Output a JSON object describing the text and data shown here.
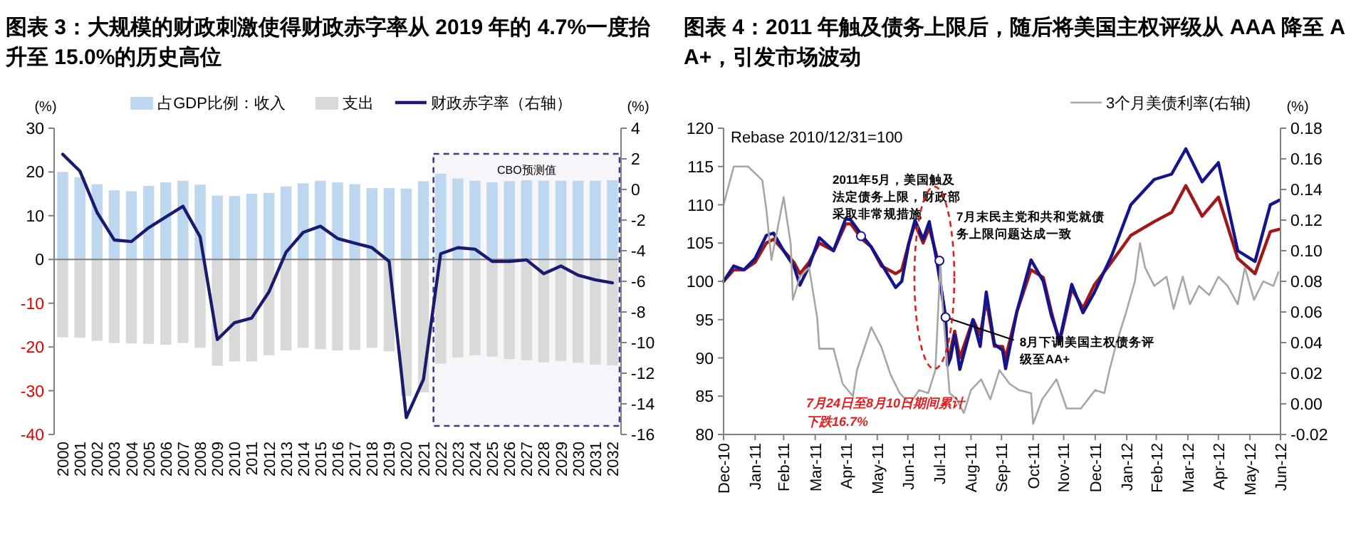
{
  "chart_data": [
    {
      "type": "bar",
      "title": "图表 3：大规模的财政刺激使得财政赤字率从 2019 年的 4.7%一度抬升至 15.0%的历史高位",
      "ylabel": "(%)",
      "y2label": "(%)",
      "legend": "top",
      "stacked": true,
      "categories": [
        "2000",
        "2001",
        "2002",
        "2003",
        "2004",
        "2005",
        "2006",
        "2007",
        "2008",
        "2009",
        "2010",
        "2011",
        "2012",
        "2013",
        "2014",
        "2015",
        "2016",
        "2017",
        "2018",
        "2019",
        "2020",
        "2021",
        "2022",
        "2023",
        "2024",
        "2025",
        "2026",
        "2027",
        "2028",
        "2029",
        "2030",
        "2031",
        "2032"
      ],
      "series": [
        {
          "name": "占GDP比例：收入",
          "color": "#bdd7ee",
          "values": [
            20,
            18.8,
            17.2,
            15.8,
            15.6,
            16.8,
            17.6,
            18,
            17.1,
            14.6,
            14.5,
            15,
            15.2,
            16.7,
            17.4,
            18,
            17.6,
            17.2,
            16.3,
            16.3,
            16.2,
            17.9,
            19.6,
            18.5,
            18,
            17.6,
            17.9,
            18.1,
            18,
            18,
            18,
            18,
            18.1
          ]
        },
        {
          "name": "支出",
          "color": "#d9d9d9",
          "values": [
            -17.8,
            -17.9,
            -18.6,
            -19.1,
            -19.2,
            -19.3,
            -19.5,
            -19.1,
            -20.2,
            -24.3,
            -23.3,
            -23.3,
            -21.9,
            -20.8,
            -20.2,
            -20.5,
            -20.8,
            -20.7,
            -20.2,
            -21,
            -31.2,
            -30.4,
            -23.8,
            -22.4,
            -21.9,
            -22.2,
            -22.8,
            -23,
            -23.5,
            -23.2,
            -23.6,
            -24,
            -24.2
          ]
        },
        {
          "name": "财政赤字率（右轴）",
          "type": "line",
          "axis": "y2",
          "color": "#1a1a6e",
          "values": [
            2.3,
            1.2,
            -1.5,
            -3.3,
            -3.4,
            -2.5,
            -1.8,
            -1.1,
            -3.1,
            -9.8,
            -8.7,
            -8.4,
            -6.7,
            -4.1,
            -2.8,
            -2.4,
            -3.2,
            -3.5,
            -3.8,
            -4.7,
            -14.9,
            -12.4,
            -4.2,
            -3.8,
            -3.9,
            -4.7,
            -4.7,
            -4.6,
            -5.5,
            -5.0,
            -5.6,
            -5.9,
            -6.1
          ]
        }
      ],
      "ylim": [
        -40,
        30
      ],
      "yticks": [
        -40,
        -30,
        -20,
        -10,
        0,
        10,
        20,
        30
      ],
      "y2lim": [
        -16,
        4
      ],
      "y2ticks": [
        -16,
        -14,
        -12,
        -10,
        -8,
        -6,
        -4,
        -2,
        0,
        2,
        4
      ],
      "bands": [
        {
          "axis": "x",
          "from": "2022",
          "to": "2032",
          "label": "CBO预测值",
          "color": "#3a3a9a"
        }
      ]
    },
    {
      "type": "line",
      "title": "图表 4：2011 年触及债务上限后，随后将美国主权评级从 AAA 降至 AA+，引发市场波动",
      "y2label": "(%)",
      "legend": "top",
      "series": [
        {
          "color": "#a01818",
          "x": [
            "2010-12-31",
            "2011-01-10",
            "2011-01-20",
            "2011-01-31",
            "2011-02-11",
            "2011-02-18",
            "2011-02-28",
            "2011-03-10",
            "2011-03-16",
            "2011-03-25",
            "2011-04-04",
            "2011-04-18",
            "2011-04-30",
            "2011-05-05",
            "2011-05-16",
            "2011-05-25",
            "2011-06-04",
            "2011-06-18",
            "2011-06-24",
            "2011-07-01",
            "2011-07-07",
            "2011-07-15",
            "2011-07-21",
            "2011-07-28",
            "2011-08-06",
            "2011-08-08",
            "2011-08-11",
            "2011-08-15",
            "2011-08-20",
            "2011-09-02",
            "2011-09-09",
            "2011-09-15",
            "2011-09-23",
            "2011-10-01",
            "2011-10-04",
            "2011-10-15",
            "2011-10-29",
            "2011-11-10",
            "2011-11-18",
            "2011-11-26",
            "2011-12-08",
            "2011-12-19",
            "2011-12-30",
            "2012-01-16",
            "2012-02-04",
            "2012-02-27",
            "2012-03-15",
            "2012-03-29",
            "2012-04-14",
            "2012-04-30",
            "2012-05-19",
            "2012-06-05",
            "2012-06-20",
            "2012-06-29"
          ],
          "values": [
            100,
            101.5,
            101.5,
            102.5,
            105,
            105.5,
            104,
            102.5,
            101,
            102.5,
            105,
            104,
            107.5,
            107.5,
            105.5,
            104.5,
            102,
            101,
            101.5,
            105,
            107.5,
            105,
            107,
            103.5,
            95,
            89.5,
            91,
            93.5,
            90,
            95,
            93,
            97.5,
            91.5,
            91.5,
            90,
            96,
            101.5,
            100.5,
            96,
            92,
            99,
            96.5,
            99.5,
            102.5,
            106,
            107.8,
            109,
            112.5,
            108.5,
            111,
            103,
            101,
            106.5,
            106.8
          ]
        },
        {
          "color": "#14148c",
          "x": [
            "2010-12-31",
            "2011-01-10",
            "2011-01-20",
            "2011-01-31",
            "2011-02-11",
            "2011-02-18",
            "2011-02-28",
            "2011-03-10",
            "2011-03-16",
            "2011-03-25",
            "2011-04-04",
            "2011-04-18",
            "2011-04-30",
            "2011-05-05",
            "2011-05-16",
            "2011-05-25",
            "2011-06-04",
            "2011-06-18",
            "2011-06-24",
            "2011-07-01",
            "2011-07-07",
            "2011-07-15",
            "2011-07-21",
            "2011-07-28",
            "2011-08-06",
            "2011-08-08",
            "2011-08-11",
            "2011-08-15",
            "2011-08-20",
            "2011-09-02",
            "2011-09-09",
            "2011-09-15",
            "2011-09-23",
            "2011-10-01",
            "2011-10-04",
            "2011-10-15",
            "2011-10-29",
            "2011-11-10",
            "2011-11-18",
            "2011-11-26",
            "2011-12-08",
            "2011-12-19",
            "2011-12-30",
            "2012-01-16",
            "2012-02-04",
            "2012-02-27",
            "2012-03-15",
            "2012-03-29",
            "2012-04-14",
            "2012-04-30",
            "2012-05-19",
            "2012-06-05",
            "2012-06-20",
            "2012-06-29"
          ],
          "values": [
            100,
            102,
            101.5,
            103,
            106,
            106.3,
            104,
            102,
            99.5,
            102,
            105.7,
            104,
            108.2,
            108,
            106,
            104.5,
            102.3,
            99.2,
            100,
            105,
            108,
            105.5,
            107.8,
            103,
            95.5,
            89,
            90,
            93,
            88.5,
            95,
            91.5,
            98.6,
            91.8,
            91,
            88.6,
            96,
            102.8,
            100,
            95.5,
            92.3,
            99.6,
            95.9,
            98.5,
            103.3,
            110,
            113.3,
            114,
            117.3,
            113,
            115.5,
            104,
            102.6,
            110,
            110.6
          ]
        },
        {
          "name": "3个月美债利率(右轴)",
          "color": "#a6a6a6",
          "axis": "y2",
          "x": [
            "2010-12-31",
            "2011-01-10",
            "2011-01-24",
            "2011-02-07",
            "2011-02-11",
            "2011-02-16",
            "2011-02-28",
            "2011-03-07",
            "2011-03-09",
            "2011-03-16",
            "2011-03-25",
            "2011-04-02",
            "2011-04-04",
            "2011-04-18",
            "2011-04-27",
            "2011-05-07",
            "2011-05-11",
            "2011-05-25",
            "2011-06-04",
            "2011-06-13",
            "2011-06-22",
            "2011-07-02",
            "2011-07-11",
            "2011-07-20",
            "2011-07-27",
            "2011-08-01",
            "2011-08-03",
            "2011-08-10",
            "2011-08-17",
            "2011-08-24",
            "2011-08-31",
            "2011-09-10",
            "2011-09-19",
            "2011-09-28",
            "2011-10-08",
            "2011-10-17",
            "2011-10-29",
            "2011-10-31",
            "2011-11-09",
            "2011-11-23",
            "2011-12-03",
            "2011-12-17",
            "2011-12-31",
            "2012-01-09",
            "2012-01-14",
            "2012-01-21",
            "2012-01-30",
            "2012-02-08",
            "2012-02-13",
            "2012-02-18",
            "2012-02-27",
            "2012-03-10",
            "2012-03-17",
            "2012-03-26",
            "2012-04-02",
            "2012-04-11",
            "2012-04-21",
            "2012-04-30",
            "2012-05-09",
            "2012-05-19",
            "2012-05-26",
            "2012-06-04",
            "2012-06-13",
            "2012-06-23",
            "2012-06-28"
          ],
          "values": [
            0.13,
            0.155,
            0.155,
            0.146,
            0.127,
            0.094,
            0.135,
            0.104,
            0.068,
            0.083,
            0.089,
            0.056,
            0.036,
            0.036,
            0.013,
            0.005,
            0.022,
            0.05,
            0.037,
            0.019,
            0.007,
            0.0,
            0.009,
            0.007,
            0.022,
            0.093,
            0.065,
            0.007,
            0.003,
            -0.006,
            0.009,
            0.016,
            0.003,
            0.022,
            0.013,
            0.009,
            0.007,
            -0.013,
            0.003,
            0.016,
            -0.003,
            -0.003,
            0.009,
            0.007,
            0.022,
            0.04,
            0.059,
            0.08,
            0.105,
            0.089,
            0.077,
            0.083,
            0.062,
            0.083,
            0.065,
            0.077,
            0.071,
            0.083,
            0.077,
            0.065,
            0.089,
            0.068,
            0.08,
            0.077,
            0.086
          ]
        }
      ],
      "xlim": [
        "2010-12-31",
        "2012-06-30"
      ],
      "xticks": [
        {
          "value": "2010-12-31",
          "label": "Dec-10"
        },
        {
          "value": "2011-01-31",
          "label": "Jan-11"
        },
        {
          "value": "2011-02-28",
          "label": "Feb-11"
        },
        {
          "value": "2011-03-31",
          "label": "Mar-11"
        },
        {
          "value": "2011-04-30",
          "label": "Apr-11"
        },
        {
          "value": "2011-05-31",
          "label": "May-11"
        },
        {
          "value": "2011-06-30",
          "label": "Jun-11"
        },
        {
          "value": "2011-07-31",
          "label": "Jul-11"
        },
        {
          "value": "2011-08-31",
          "label": "Aug-11"
        },
        {
          "value": "2011-09-30",
          "label": "Sep-11"
        },
        {
          "value": "2011-10-31",
          "label": "Oct-11"
        },
        {
          "value": "2011-11-30",
          "label": "Nov-11"
        },
        {
          "value": "2011-12-31",
          "label": "Dec-11"
        },
        {
          "value": "2012-01-31",
          "label": "Jan-12"
        },
        {
          "value": "2012-02-29",
          "label": "Feb-12"
        },
        {
          "value": "2012-03-31",
          "label": "Mar-12"
        },
        {
          "value": "2012-04-30",
          "label": "Apr-12"
        },
        {
          "value": "2012-05-31",
          "label": "May-12"
        },
        {
          "value": "2012-06-30",
          "label": "Jun-12"
        }
      ],
      "ylim": [
        80,
        120
      ],
      "yticks": [
        80,
        85,
        90,
        95,
        100,
        105,
        110,
        115,
        120
      ],
      "y2lim": [
        -0.02,
        0.18
      ],
      "y2ticks": [
        -0.02,
        {
          "value": 0,
          "label": "0.00"
        },
        0.02,
        0.04,
        0.06,
        0.08,
        {
          "value": 0.1,
          "label": "0.10"
        },
        0.12,
        0.14,
        0.16,
        0.18
      ],
      "annotations": [
        "Rebase 2010/12/31=100",
        {
          "text": "2011年5月，美国触及法定债务上限，财政部采取非常规措施",
          "x": "2011-05-15",
          "y": 105.9
        },
        {
          "text": "7月末民主党和共和党就债务上限问题达成一致",
          "x": "2011-07-31",
          "y": 102.7
        },
        {
          "text": "8月下调美国主权债务评级至AA+",
          "x": "2011-08-06",
          "y": 95.3
        },
        "7月24日至8月10日期间累计下跌16.7%"
      ]
    }
  ]
}
